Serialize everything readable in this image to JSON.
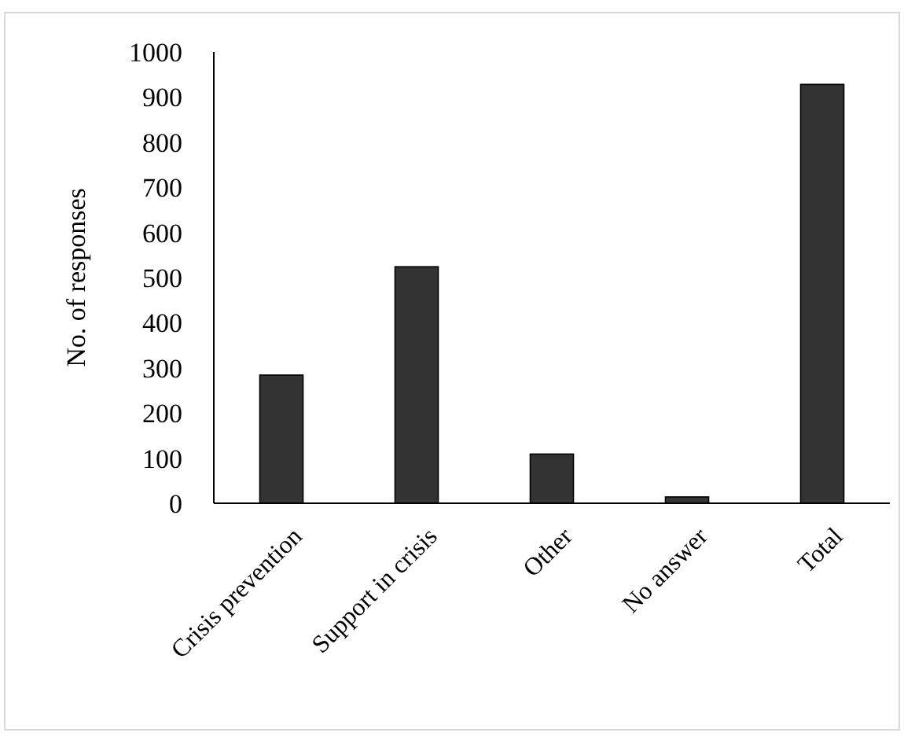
{
  "chart_data": {
    "type": "bar",
    "ylabel": "No. of responses",
    "categories": [
      "Crisis prevention",
      "Support in crisis",
      "Other",
      "No answer",
      "Total"
    ],
    "values": [
      284,
      524,
      109,
      14,
      928
    ],
    "color": "#333333",
    "ylim": [
      0,
      1000
    ],
    "yticks": [
      0,
      100,
      200,
      300,
      400,
      500,
      600,
      700,
      800,
      900,
      1000
    ],
    "grid": false
  }
}
